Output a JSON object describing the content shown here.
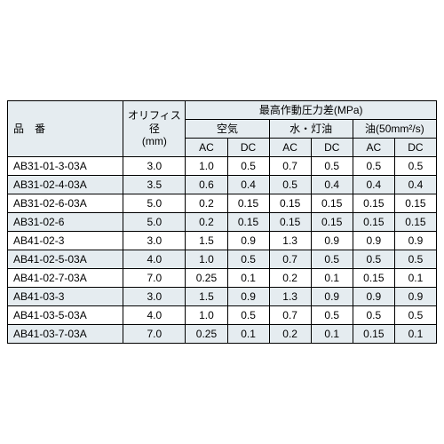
{
  "headers": {
    "partNumber": "品　番",
    "orifice": "オリフィス径\n(mm)",
    "maxOpPressure": "最高作動圧力差(MPa)",
    "fluids": {
      "air": "空気",
      "waterKerosene": "水・灯油",
      "oil": "油(50mm²/s)"
    },
    "ac": "AC",
    "dc": "DC"
  },
  "colors": {
    "evenRow": "#e5ecf0",
    "oddRow": "#ffffff",
    "border": "#000000"
  },
  "rows": [
    {
      "part": "AB31-01-3-03A",
      "orifice": "3.0",
      "air_ac": "1.0",
      "air_dc": "0.5",
      "wk_ac": "0.7",
      "wk_dc": "0.5",
      "oil_ac": "0.5",
      "oil_dc": "0.5"
    },
    {
      "part": "AB31-02-4-03A",
      "orifice": "3.5",
      "air_ac": "0.6",
      "air_dc": "0.4",
      "wk_ac": "0.5",
      "wk_dc": "0.4",
      "oil_ac": "0.4",
      "oil_dc": "0.4"
    },
    {
      "part": "AB31-02-6-03A",
      "orifice": "5.0",
      "air_ac": "0.2",
      "air_dc": "0.15",
      "wk_ac": "0.15",
      "wk_dc": "0.15",
      "oil_ac": "0.15",
      "oil_dc": "0.15"
    },
    {
      "part": "AB31-02-6",
      "orifice": "5.0",
      "air_ac": "0.2",
      "air_dc": "0.15",
      "wk_ac": "0.15",
      "wk_dc": "0.15",
      "oil_ac": "0.15",
      "oil_dc": "0.15"
    },
    {
      "part": "AB41-02-3",
      "orifice": "3.0",
      "air_ac": "1.5",
      "air_dc": "0.9",
      "wk_ac": "1.3",
      "wk_dc": "0.9",
      "oil_ac": "0.9",
      "oil_dc": "0.9"
    },
    {
      "part": "AB41-02-5-03A",
      "orifice": "4.0",
      "air_ac": "1.0",
      "air_dc": "0.5",
      "wk_ac": "0.7",
      "wk_dc": "0.5",
      "oil_ac": "0.5",
      "oil_dc": "0.5"
    },
    {
      "part": "AB41-02-7-03A",
      "orifice": "7.0",
      "air_ac": "0.25",
      "air_dc": "0.1",
      "wk_ac": "0.2",
      "wk_dc": "0.1",
      "oil_ac": "0.15",
      "oil_dc": "0.1"
    },
    {
      "part": "AB41-03-3",
      "orifice": "3.0",
      "air_ac": "1.5",
      "air_dc": "0.9",
      "wk_ac": "1.3",
      "wk_dc": "0.9",
      "oil_ac": "0.9",
      "oil_dc": "0.9"
    },
    {
      "part": "AB41-03-5-03A",
      "orifice": "4.0",
      "air_ac": "1.0",
      "air_dc": "0.5",
      "wk_ac": "0.7",
      "wk_dc": "0.5",
      "oil_ac": "0.5",
      "oil_dc": "0.5"
    },
    {
      "part": "AB41-03-7-03A",
      "orifice": "7.0",
      "air_ac": "0.25",
      "air_dc": "0.1",
      "wk_ac": "0.2",
      "wk_dc": "0.1",
      "oil_ac": "0.15",
      "oil_dc": "0.1"
    }
  ]
}
